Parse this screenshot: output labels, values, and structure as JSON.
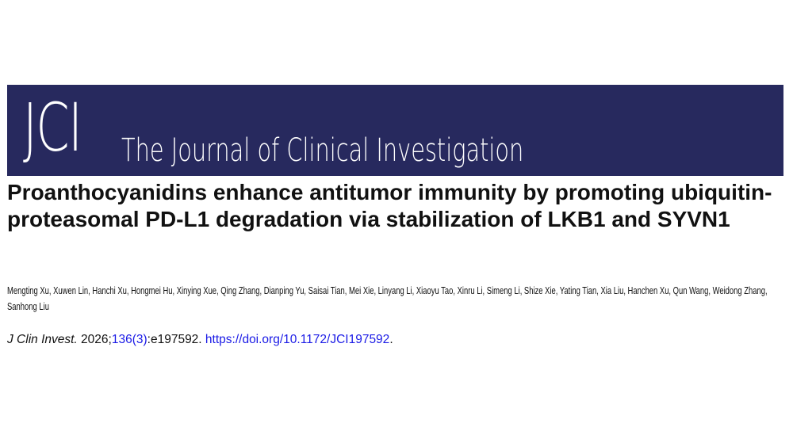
{
  "header": {
    "logo_text": "JCI",
    "journal_name": "The Journal of Clinical Investigation",
    "banner_color": "#27295e"
  },
  "article": {
    "title": "Proanthocyanidins enhance antitumor immunity by promoting ubiquitin-proteasomal PD-L1 degradation via stabilization of LKB1 and SYVN1",
    "authors": "Mengting Xu, Xuwen Lin, Hanchi Xu, Hongmei Hu, Xinying Xue, Qing Zhang, Dianping Yu, Saisai Tian, Mei Xie, Linyang Li, Xiaoyu Tao, Xinru Li, Simeng Li, Shize Xie, Yating Tian, Xia Liu, Hanchen Xu, Qun Wang, Weidong Zhang, Sanhong Liu",
    "citation": {
      "journal_abbrev": "J Clin Invest.",
      "year": " 2026;",
      "volume_issue": "136(3)",
      "article_id": ":e197592. ",
      "doi_link": "https://doi.org/10.1172/JCI197592",
      "end": ".",
      "link_color": "#1a1ae6"
    }
  }
}
